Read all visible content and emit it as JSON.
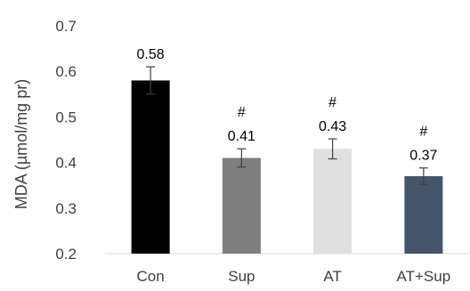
{
  "chart_data": {
    "type": "bar",
    "title": "",
    "xlabel": "",
    "ylabel": "MDA (µmol/mg pr)",
    "ylim": [
      0.2,
      0.7
    ],
    "yticks": [
      0.2,
      0.3,
      0.4,
      0.5,
      0.6,
      0.7
    ],
    "grid": false,
    "legend": "none",
    "categories": [
      "Con",
      "Sup",
      "AT",
      "AT+Sup"
    ],
    "values": [
      0.58,
      0.41,
      0.43,
      0.37
    ],
    "errors": [
      0.03,
      0.02,
      0.022,
      0.018
    ],
    "value_labels": [
      "0.58",
      "0.41",
      "0.43",
      "0.37"
    ],
    "significance": [
      "",
      "#",
      "#",
      "#"
    ],
    "colors": [
      "#000000",
      "#7f7f7f",
      "#e0e0e0",
      "#44546a"
    ],
    "error_color": "#404040",
    "axis_color": "#d9d9d9"
  }
}
